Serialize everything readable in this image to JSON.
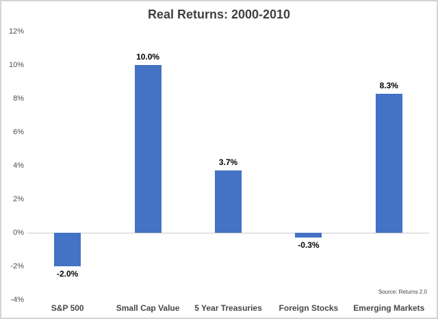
{
  "chart_data": {
    "type": "bar",
    "title": "Real Returns: 2000-2010",
    "categories": [
      "S&P 500",
      "Small Cap Value",
      "5 Year Treasuries",
      "Foreign Stocks",
      "Emerging Markets"
    ],
    "values": [
      -2.0,
      10.0,
      3.7,
      -0.3,
      8.3
    ],
    "data_labels": [
      "-2.0%",
      "10.0%",
      "3.7%",
      "-0.3%",
      "8.3%"
    ],
    "y_ticks": [
      {
        "value": 12,
        "label": "12%"
      },
      {
        "value": 10,
        "label": "10%"
      },
      {
        "value": 8,
        "label": "8%"
      },
      {
        "value": 6,
        "label": "6%"
      },
      {
        "value": 4,
        "label": "4%"
      },
      {
        "value": 2,
        "label": "2%"
      },
      {
        "value": 0,
        "label": "0%"
      },
      {
        "value": -2,
        "label": "-2%"
      },
      {
        "value": -4,
        "label": "-4%"
      }
    ],
    "ylim": [
      -4,
      12
    ],
    "xlabel": "",
    "ylabel": "",
    "grid": false,
    "legend_position": "none",
    "bar_color": "#4472C4",
    "zero_line_color": "#c9c9c9",
    "source": "Source: Returns 2.0"
  }
}
